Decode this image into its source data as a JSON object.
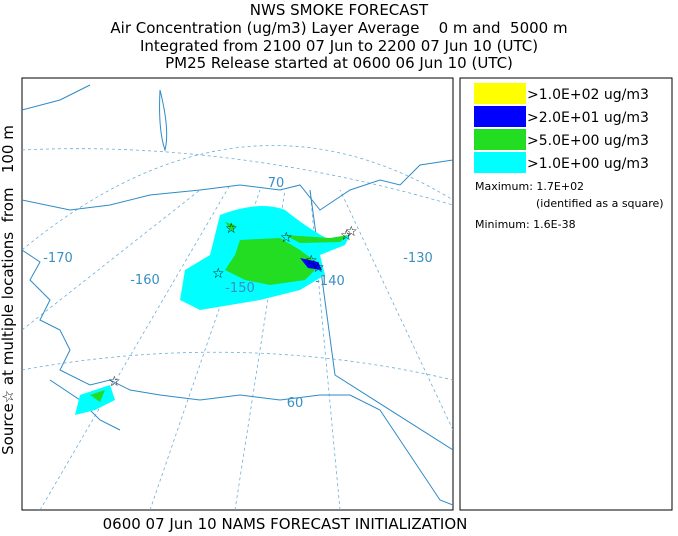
{
  "header": {
    "lines": [
      "NWS SMOKE FORECAST",
      "Air Concentration (ug/m3) Layer Average    0 m and  5000 m",
      "Integrated from 2100 07 Jun to 2200 07 Jun 10 (UTC)",
      "PM25 Release started at 0600 06 Jun 10 (UTC)"
    ]
  },
  "side_label": "Source☆ at multiple locations  from   100 m",
  "footer": "0600 07 Jun 10 NAMS FORECAST INITIALIZATION",
  "map": {
    "labels": [
      "-170",
      "-160",
      "-150",
      "-140",
      "-130",
      "70",
      "60"
    ]
  },
  "legend": {
    "items": [
      {
        "label": ">1.0E+02 ug/m3",
        "color": "#ffff00"
      },
      {
        "label": ">2.0E+01 ug/m3",
        "color": "#0000ff"
      },
      {
        "label": ">5.0E+00 ug/m3",
        "color": "#22dd22"
      },
      {
        "label": ">1.0E+00 ug/m3",
        "color": "#00ffff"
      }
    ],
    "maximum": "Maximum: 1.7E+02",
    "maximum_note": "(identified as a square)",
    "minimum": "Minimum: 1.6E-38"
  }
}
